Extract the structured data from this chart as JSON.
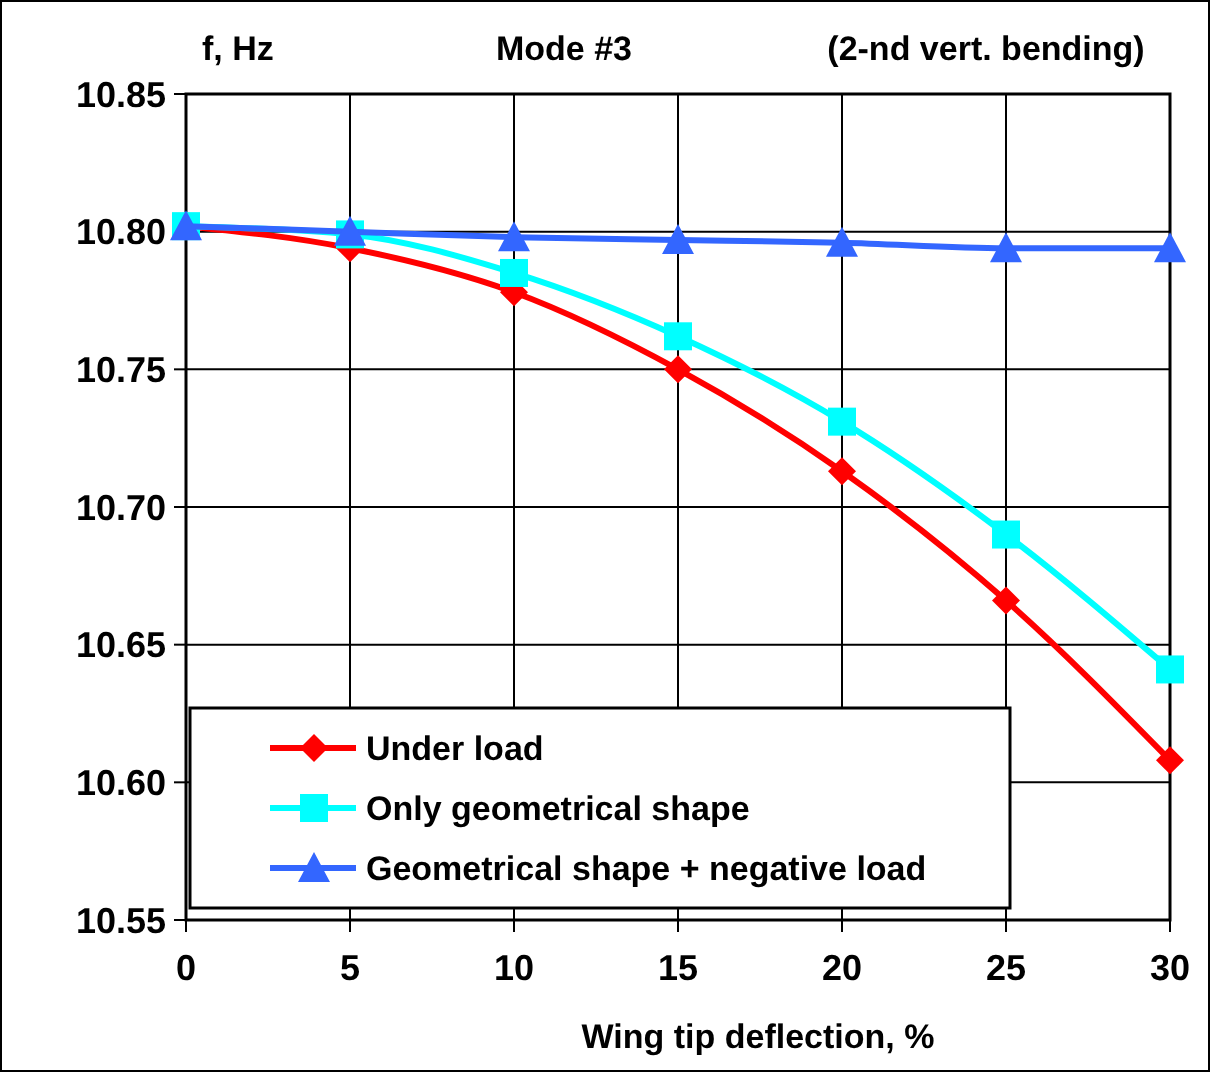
{
  "chart_data": {
    "type": "line",
    "title": "Mode #3",
    "subtitle": "(2-nd vert. bending)",
    "ylabel": "f, Hz",
    "xlabel": "Wing tip deflection, %",
    "x": [
      0,
      5,
      10,
      15,
      20,
      25,
      30
    ],
    "series": [
      {
        "name": "Under load",
        "color": "#ff0000",
        "marker": "diamond",
        "values": [
          10.802,
          10.794,
          10.778,
          10.75,
          10.713,
          10.666,
          10.608
        ]
      },
      {
        "name": "Only geometrical shape",
        "color": "#00ffff",
        "marker": "square",
        "values": [
          10.802,
          10.799,
          10.785,
          10.762,
          10.731,
          10.69,
          10.641
        ]
      },
      {
        "name": "Geometrical shape + negative load",
        "color": "#3366ff",
        "marker": "triangle",
        "values": [
          10.802,
          10.8,
          10.798,
          10.797,
          10.796,
          10.794,
          10.794
        ]
      }
    ],
    "xlim": [
      0,
      30
    ],
    "xticks": [
      0,
      5,
      10,
      15,
      20,
      25,
      30
    ],
    "ylim": [
      10.55,
      10.85
    ],
    "yticks": [
      {
        "value": 10.55,
        "label": "10.55"
      },
      {
        "value": 10.6,
        "label": "10.60"
      },
      {
        "value": 10.65,
        "label": "10.65"
      },
      {
        "value": 10.7,
        "label": "10.70"
      },
      {
        "value": 10.75,
        "label": "10.75"
      },
      {
        "value": 10.8,
        "label": "10.80"
      },
      {
        "value": 10.85,
        "label": "10.85"
      }
    ],
    "grid": true,
    "legend": "bottom left",
    "line_style": "solid"
  }
}
